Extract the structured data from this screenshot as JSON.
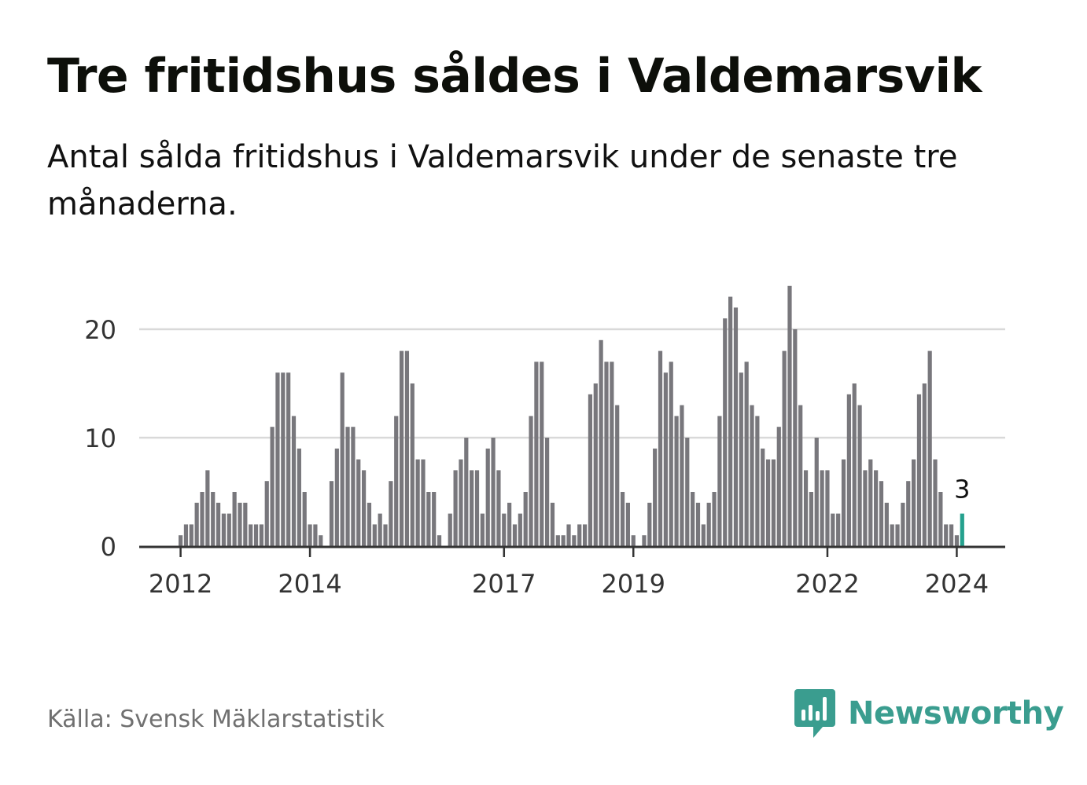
{
  "title": "Tre fritidshus såldes i Valdemarsvik",
  "subtitle": "Antal sålda fritidshus i Valdemarsvik under de senaste tre månaderna.",
  "source": "Källa: Svensk Mäklarstatistik",
  "brand": {
    "name": "Newsworthy",
    "icon": "newsworthy-logo-icon"
  },
  "colors": {
    "bar": "#78777c",
    "highlight": "#25a18e",
    "grid": "#d9d9d9",
    "axis": "#333333",
    "brand": "#3a9d8f"
  },
  "chart_data": {
    "type": "bar",
    "title": "Tre fritidshus såldes i Valdemarsvik",
    "xlabel": "",
    "ylabel": "",
    "ylim": [
      0,
      24
    ],
    "yticks": [
      0,
      10,
      20
    ],
    "grid": true,
    "x_tick_labels": [
      {
        "label": "2012",
        "index": 0
      },
      {
        "label": "2014",
        "index": 24
      },
      {
        "label": "2017",
        "index": 60
      },
      {
        "label": "2019",
        "index": 84
      },
      {
        "label": "2022",
        "index": 120
      },
      {
        "label": "2024",
        "index": 144
      }
    ],
    "values": [
      1,
      2,
      2,
      4,
      5,
      7,
      5,
      4,
      3,
      3,
      5,
      4,
      4,
      2,
      2,
      2,
      6,
      11,
      16,
      16,
      16,
      12,
      9,
      5,
      2,
      2,
      1,
      0,
      6,
      9,
      16,
      11,
      11,
      8,
      7,
      4,
      2,
      3,
      2,
      6,
      12,
      18,
      18,
      15,
      8,
      8,
      5,
      5,
      1,
      0,
      3,
      7,
      8,
      10,
      7,
      7,
      3,
      9,
      10,
      7,
      3,
      4,
      2,
      3,
      5,
      12,
      17,
      17,
      10,
      4,
      1,
      1,
      2,
      1,
      2,
      2,
      14,
      15,
      19,
      17,
      17,
      13,
      5,
      4,
      1,
      0,
      1,
      4,
      9,
      18,
      16,
      17,
      12,
      13,
      10,
      5,
      4,
      2,
      4,
      5,
      12,
      21,
      23,
      22,
      16,
      17,
      13,
      12,
      9,
      8,
      8,
      11,
      18,
      24,
      20,
      13,
      7,
      5,
      10,
      7,
      7,
      3,
      3,
      8,
      14,
      15,
      13,
      7,
      8,
      7,
      6,
      4,
      2,
      2,
      4,
      6,
      8,
      14,
      15,
      18,
      8,
      5,
      2,
      2,
      1,
      3
    ],
    "highlight_index": 145,
    "highlight_label": "3"
  }
}
